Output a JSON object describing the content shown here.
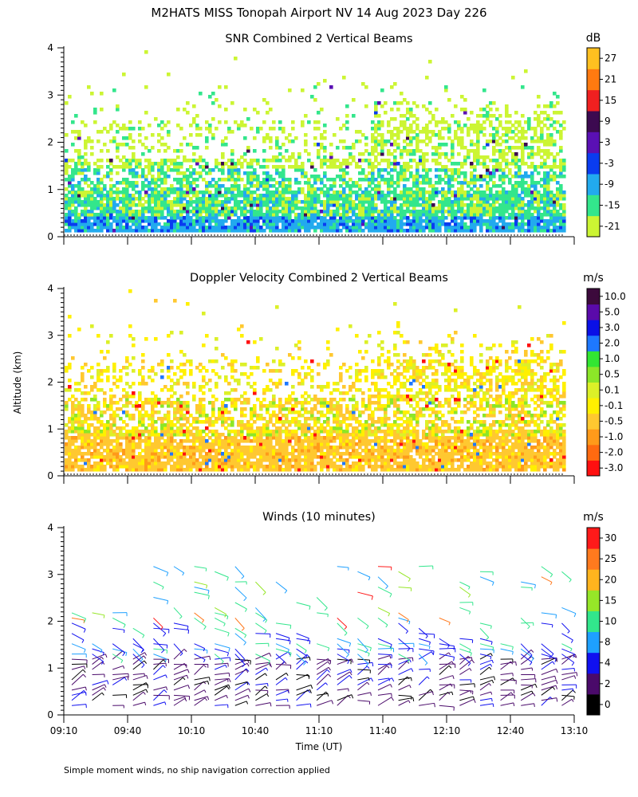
{
  "figure": {
    "title": "M2HATS MISS Tonopah Airport NV  14 Aug 2023 Day 226",
    "ylabel": "Altitude (km)",
    "xlabel": "Time (UT)",
    "footnote": "Simple moment winds, no ship navigation correction applied",
    "x_ticks": [
      "09:10",
      "09:40",
      "10:10",
      "10:40",
      "11:10",
      "11:40",
      "12:10",
      "12:40",
      "13:10"
    ],
    "y_ticks": [
      "0",
      "1",
      "2",
      "3",
      "4"
    ]
  },
  "chart_data": [
    {
      "type": "heatmap",
      "title": "SNR Combined 2 Vertical Beams",
      "colorbar_unit": "dB",
      "colorbar_ticks": [
        "-21",
        "-15",
        "-9",
        "-3",
        "3",
        "9",
        "15",
        "21",
        "27"
      ],
      "colorbar_colors": [
        "#ccf533",
        "#33e68c",
        "#22aaee",
        "#0a3cf0",
        "#5a10b4",
        "#3c0a50",
        "#f02020",
        "#ff7a10",
        "#ffc020"
      ],
      "x_range": [
        "09:10",
        "13:10"
      ],
      "ylim": [
        0,
        4
      ],
      "y_unit": "km"
    },
    {
      "type": "heatmap",
      "title": "Doppler Velocity Combined 2 Vertical Beams",
      "colorbar_unit": "m/s",
      "colorbar_ticks": [
        "-3.0",
        "-2.0",
        "-1.0",
        "-0.5",
        "-0.1",
        "0.1",
        "0.5",
        "1.0",
        "2.0",
        "3.0",
        "5.0",
        "10.0"
      ],
      "colorbar_colors": [
        "#ff1010",
        "#ff6a10",
        "#ff9a1a",
        "#ffc830",
        "#fff000",
        "#dcf028",
        "#8ce628",
        "#32e632",
        "#1e78ff",
        "#0a10e6",
        "#5a0aaa",
        "#3c0a3c"
      ],
      "x_range": [
        "09:10",
        "13:10"
      ],
      "ylim": [
        0,
        4
      ],
      "y_unit": "km"
    },
    {
      "type": "scatter",
      "title": "Winds (10 minutes)",
      "colorbar_unit": "m/s",
      "colorbar_ticks": [
        "0",
        "2",
        "4",
        "8",
        "10",
        "15",
        "20",
        "25",
        "30"
      ],
      "colorbar_colors": [
        "#000000",
        "#4a0a6a",
        "#1010f0",
        "#1ea0ff",
        "#32e68c",
        "#96e628",
        "#ffb41e",
        "#ff7a1e",
        "#ff1a1a"
      ],
      "x_range": [
        "09:10",
        "13:10"
      ],
      "ylim": [
        0,
        4
      ],
      "y_unit": "km"
    }
  ]
}
